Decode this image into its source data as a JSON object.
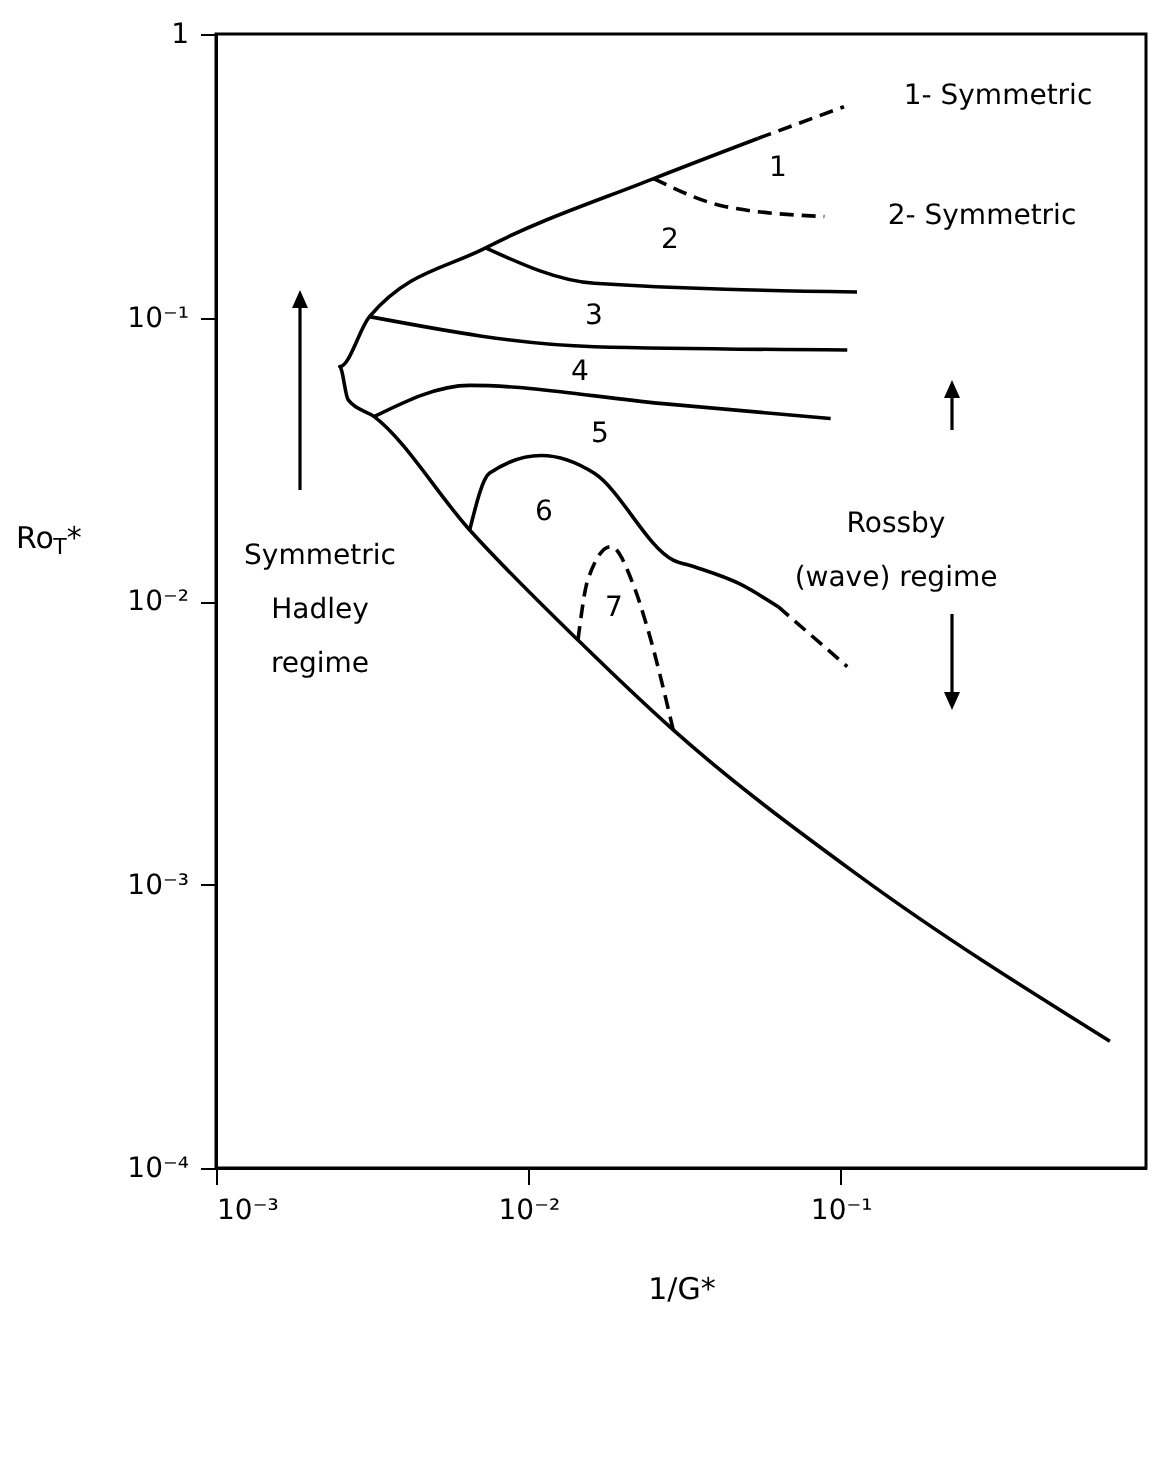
{
  "chart_data": {
    "type": "line",
    "xlabel": "1/G*",
    "ylabel": "Ro$_{T}$*",
    "log": "xy",
    "grid": false,
    "marker": "none",
    "xlim": [
      0.001,
      0.95
    ],
    "ylim": [
      0.0001,
      1
    ],
    "xticks": [
      {
        "value": 0.001,
        "label": "10⁻³"
      },
      {
        "value": 0.01,
        "label": "10⁻²"
      },
      {
        "value": 0.1,
        "label": "10⁻¹"
      }
    ],
    "yticks": [
      {
        "value": 0.0001,
        "label": "10⁻⁴"
      },
      {
        "value": 0.001,
        "label": "10⁻³"
      },
      {
        "value": 0.01,
        "label": "10⁻²"
      },
      {
        "value": 0.1,
        "label": "10⁻¹"
      },
      1
    ],
    "series": [
      {
        "color": "#000000",
        "line_style": "solid",
        "x": [
          0.0543,
          0.0252,
          0.0073,
          0.0031,
          0.00249,
          0.00265,
          0.00321,
          0.00649,
          0.01442,
          0.0291,
          0.1123,
          0.728
        ],
        "values": [
          0.428,
          0.309,
          0.176,
          0.1007,
          0.0671,
          0.0512,
          0.0447,
          0.0178,
          0.00728,
          0.00351,
          0.00109,
          0.00028
        ]
      },
      {
        "color": "#000000",
        "line_style": "dashed",
        "x": [
          0.0543,
          0.1025
        ],
        "values": [
          0.428,
          0.554
        ]
      },
      {
        "color": "#000000",
        "line_style": "dashed",
        "x": [
          0.0252,
          0.0429,
          0.0887
        ],
        "values": [
          0.309,
          0.246,
          0.227
        ]
      },
      {
        "color": "#000000",
        "line_style": "solid",
        "x": [
          0.0073,
          0.01627,
          0.1128
        ],
        "values": [
          0.176,
          0.132,
          0.123
        ]
      },
      {
        "color": "#000000",
        "line_style": "solid",
        "x": [
          0.0031,
          0.01627,
          0.105
        ],
        "values": [
          0.1007,
          0.0789,
          0.0768
        ]
      },
      {
        "color": "#000000",
        "line_style": "solid",
        "x": [
          0.00321,
          0.00649,
          0.0264,
          0.0929
        ],
        "values": [
          0.0447,
          0.0576,
          0.0498,
          0.044
        ]
      },
      {
        "color": "#000000",
        "line_style": "solid",
        "x": [
          0.00649,
          0.0075,
          0.011,
          0.01627,
          0.0291,
          0.034,
          0.0472,
          0.0631
        ],
        "values": [
          0.0178,
          0.0282,
          0.0326,
          0.0282,
          0.01395,
          0.0132,
          0.01153,
          0.00955
        ]
      },
      {
        "color": "#000000",
        "line_style": "dashed",
        "x": [
          0.0631,
          0.105
        ],
        "values": [
          0.00955,
          0.00587
        ]
      },
      {
        "color": "#000000",
        "line_style": "dashed",
        "x": [
          0.01442,
          0.0155,
          0.01836,
          0.0218,
          0.024,
          0.0291
        ],
        "values": [
          0.00728,
          0.01186,
          0.01556,
          0.01124,
          0.00812,
          0.00351
        ]
      }
    ],
    "annotations": [
      "1- Symmetric",
      "2- Symmetric",
      "1",
      "2",
      "3",
      "4",
      "5",
      "6",
      "7",
      "Symmetric\nHadley\nregime",
      "Rossby\n(wave)  regime"
    ]
  }
}
